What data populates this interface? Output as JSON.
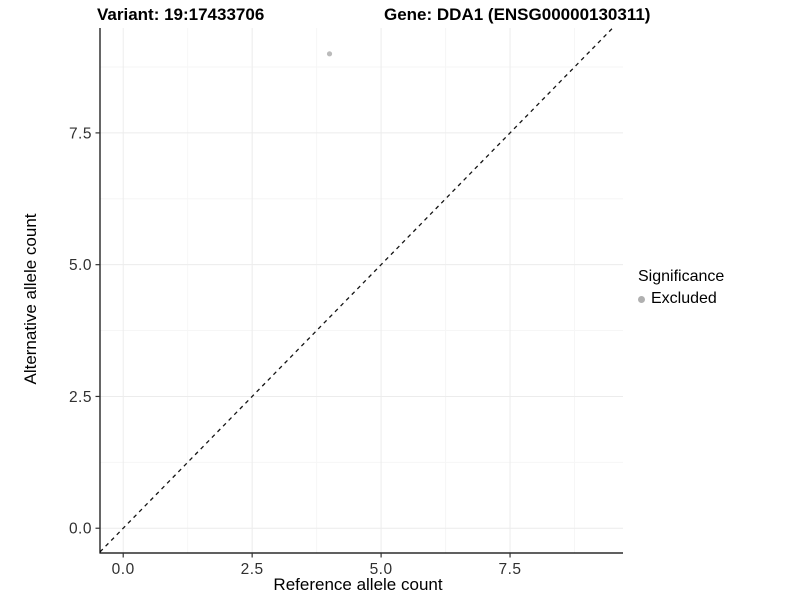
{
  "header": {
    "variant_title": "Variant: 19:17433706",
    "gene_title": "Gene: DDA1 (ENSG00000130311)"
  },
  "chart_data": {
    "type": "scatter",
    "xlabel": "Reference allele count",
    "ylabel": "Alternative allele count",
    "x_ticks": [
      0.0,
      2.5,
      5.0,
      7.5
    ],
    "y_ticks": [
      0.0,
      2.5,
      5.0,
      7.5
    ],
    "x_minor": [
      1.25,
      3.75,
      6.25,
      8.75
    ],
    "y_minor": [
      1.25,
      3.75,
      6.25,
      8.75
    ],
    "x_range": [
      -0.45,
      9.69
    ],
    "y_range": [
      -0.47,
      9.49
    ],
    "tick_decimals": 1,
    "grid": true,
    "points": [
      {
        "x": 4,
        "y": 9,
        "series": "Excluded"
      }
    ],
    "series": [
      {
        "name": "Excluded",
        "color": "#bbbbbb",
        "marker": "circle"
      }
    ],
    "reference_line": {
      "kind": "identity",
      "style": "dashed",
      "color": "#141414"
    },
    "legend": {
      "title": "Significance",
      "position": "right",
      "items": [
        {
          "label": "Excluded",
          "color": "#b0b0b0"
        }
      ]
    },
    "colors": {
      "grid_major": "#ececec",
      "grid_minor": "#f6f6f6",
      "axis_line": "#000000",
      "tick_mark": "#333333",
      "tick_text": "#303030"
    }
  }
}
